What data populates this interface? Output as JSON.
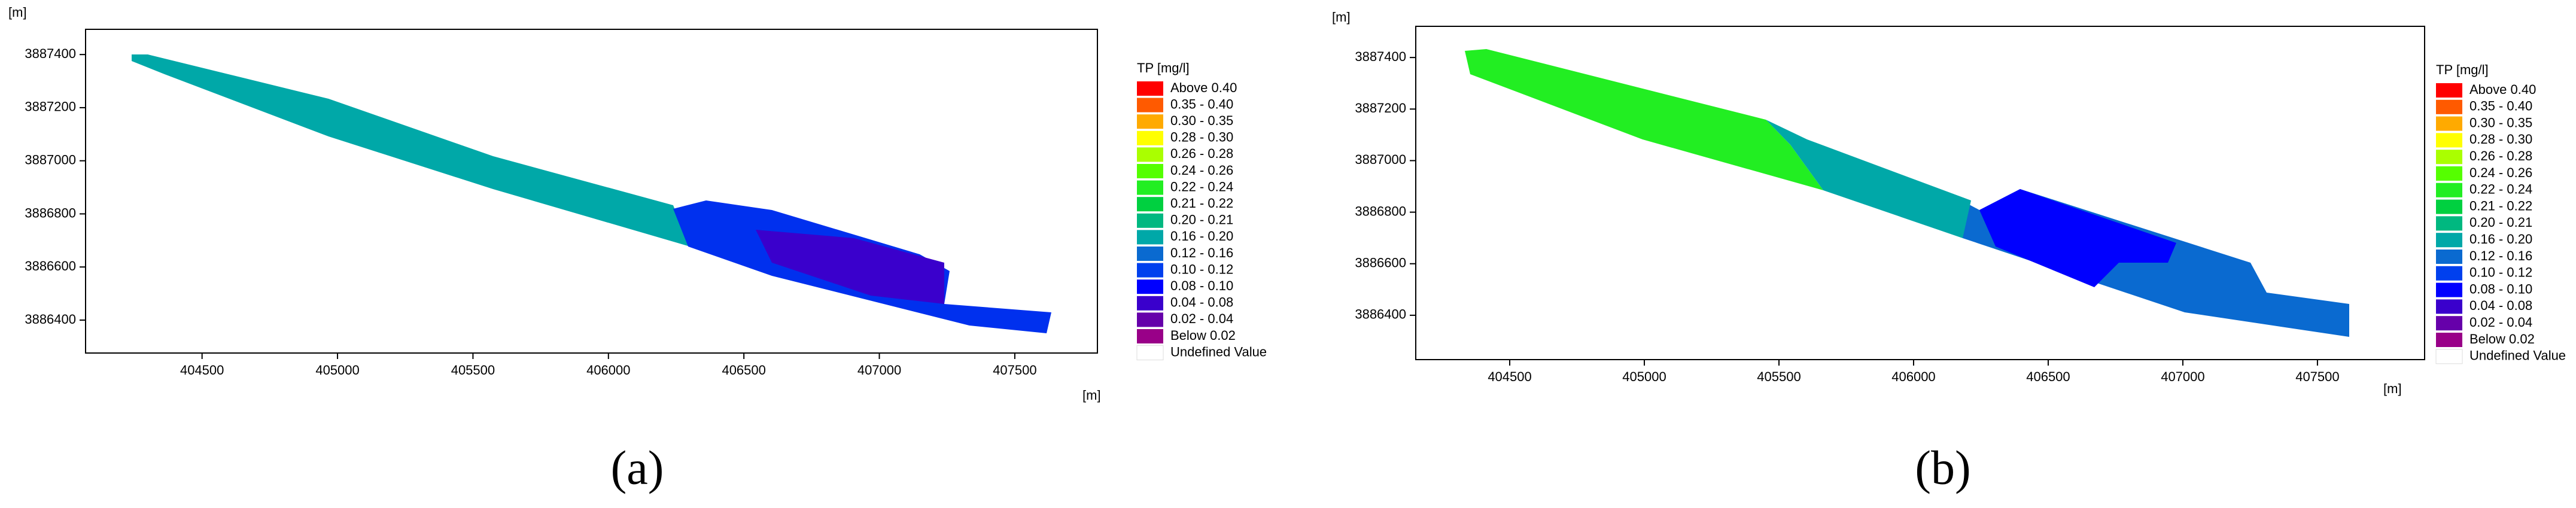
{
  "chart_data": [
    {
      "type": "contour",
      "y_label": "[m]",
      "x_label": "[m]",
      "caption": "(a)",
      "legend_title": "TP [mg/l]",
      "xlim": [
        404070,
        407805
      ],
      "ylim": [
        3886276,
        3887495
      ],
      "xticks": [
        404500,
        405000,
        405500,
        406000,
        406500,
        407000,
        407500
      ],
      "yticks": [
        3886400,
        3886600,
        3886800,
        3887000,
        3887200,
        3887400
      ],
      "series": [
        {
          "name": "Above 0.40",
          "color": "#ff0000"
        },
        {
          "name": "0.35 - 0.40",
          "color": "#ff5a00"
        },
        {
          "name": "0.30 - 0.35",
          "color": "#ffaa00"
        },
        {
          "name": "0.28 - 0.30",
          "color": "#ffff00"
        },
        {
          "name": "0.26 - 0.28",
          "color": "#aaff00"
        },
        {
          "name": "0.24 - 0.26",
          "color": "#55ff00"
        },
        {
          "name": "0.22 - 0.24",
          "color": "#22ee22"
        },
        {
          "name": "0.21 - 0.22",
          "color": "#00d040"
        },
        {
          "name": "0.20 - 0.21",
          "color": "#00b880"
        },
        {
          "name": "0.16 - 0.20",
          "color": "#00a8a8"
        },
        {
          "name": "0.12 - 0.16",
          "color": "#0a6ad0"
        },
        {
          "name": "0.10 - 0.12",
          "color": "#0040ee"
        },
        {
          "name": "0.08 - 0.10",
          "color": "#0000ff"
        },
        {
          "name": "0.04 - 0.08",
          "color": "#3a00cc"
        },
        {
          "name": "0.02 - 0.04",
          "color": "#6600aa"
        },
        {
          "name": "Below 0.02",
          "color": "#990088"
        },
        {
          "name": "Undefined Value",
          "color": "#ffffff"
        }
      ]
    },
    {
      "type": "contour",
      "y_label": "[m]",
      "x_label": "[m]",
      "caption": "(b)",
      "legend_title": "TP [mg/l]",
      "xlim": [
        404151,
        407898
      ],
      "ylim": [
        3886228,
        3887521
      ],
      "xticks": [
        404500,
        405000,
        405500,
        406000,
        406500,
        407000,
        407500
      ],
      "yticks": [
        3886400,
        3886600,
        3886800,
        3887000,
        3887200,
        3887400
      ],
      "series": [
        {
          "name": "Above 0.40",
          "color": "#ff0000"
        },
        {
          "name": "0.35 - 0.40",
          "color": "#ff5a00"
        },
        {
          "name": "0.30 - 0.35",
          "color": "#ffaa00"
        },
        {
          "name": "0.28 - 0.30",
          "color": "#ffff00"
        },
        {
          "name": "0.26 - 0.28",
          "color": "#aaff00"
        },
        {
          "name": "0.24 - 0.26",
          "color": "#55ff00"
        },
        {
          "name": "0.22 - 0.24",
          "color": "#22ee22"
        },
        {
          "name": "0.21 - 0.22",
          "color": "#00d040"
        },
        {
          "name": "0.20 - 0.21",
          "color": "#00b880"
        },
        {
          "name": "0.16 - 0.20",
          "color": "#00a8a8"
        },
        {
          "name": "0.12 - 0.16",
          "color": "#0a6ad0"
        },
        {
          "name": "0.10 - 0.12",
          "color": "#0040ee"
        },
        {
          "name": "0.08 - 0.10",
          "color": "#0000ff"
        },
        {
          "name": "0.04 - 0.08",
          "color": "#3a00cc"
        },
        {
          "name": "0.02 - 0.04",
          "color": "#6600aa"
        },
        {
          "name": "Below 0.02",
          "color": "#990088"
        },
        {
          "name": "Undefined Value",
          "color": "#ffffff"
        }
      ]
    }
  ]
}
